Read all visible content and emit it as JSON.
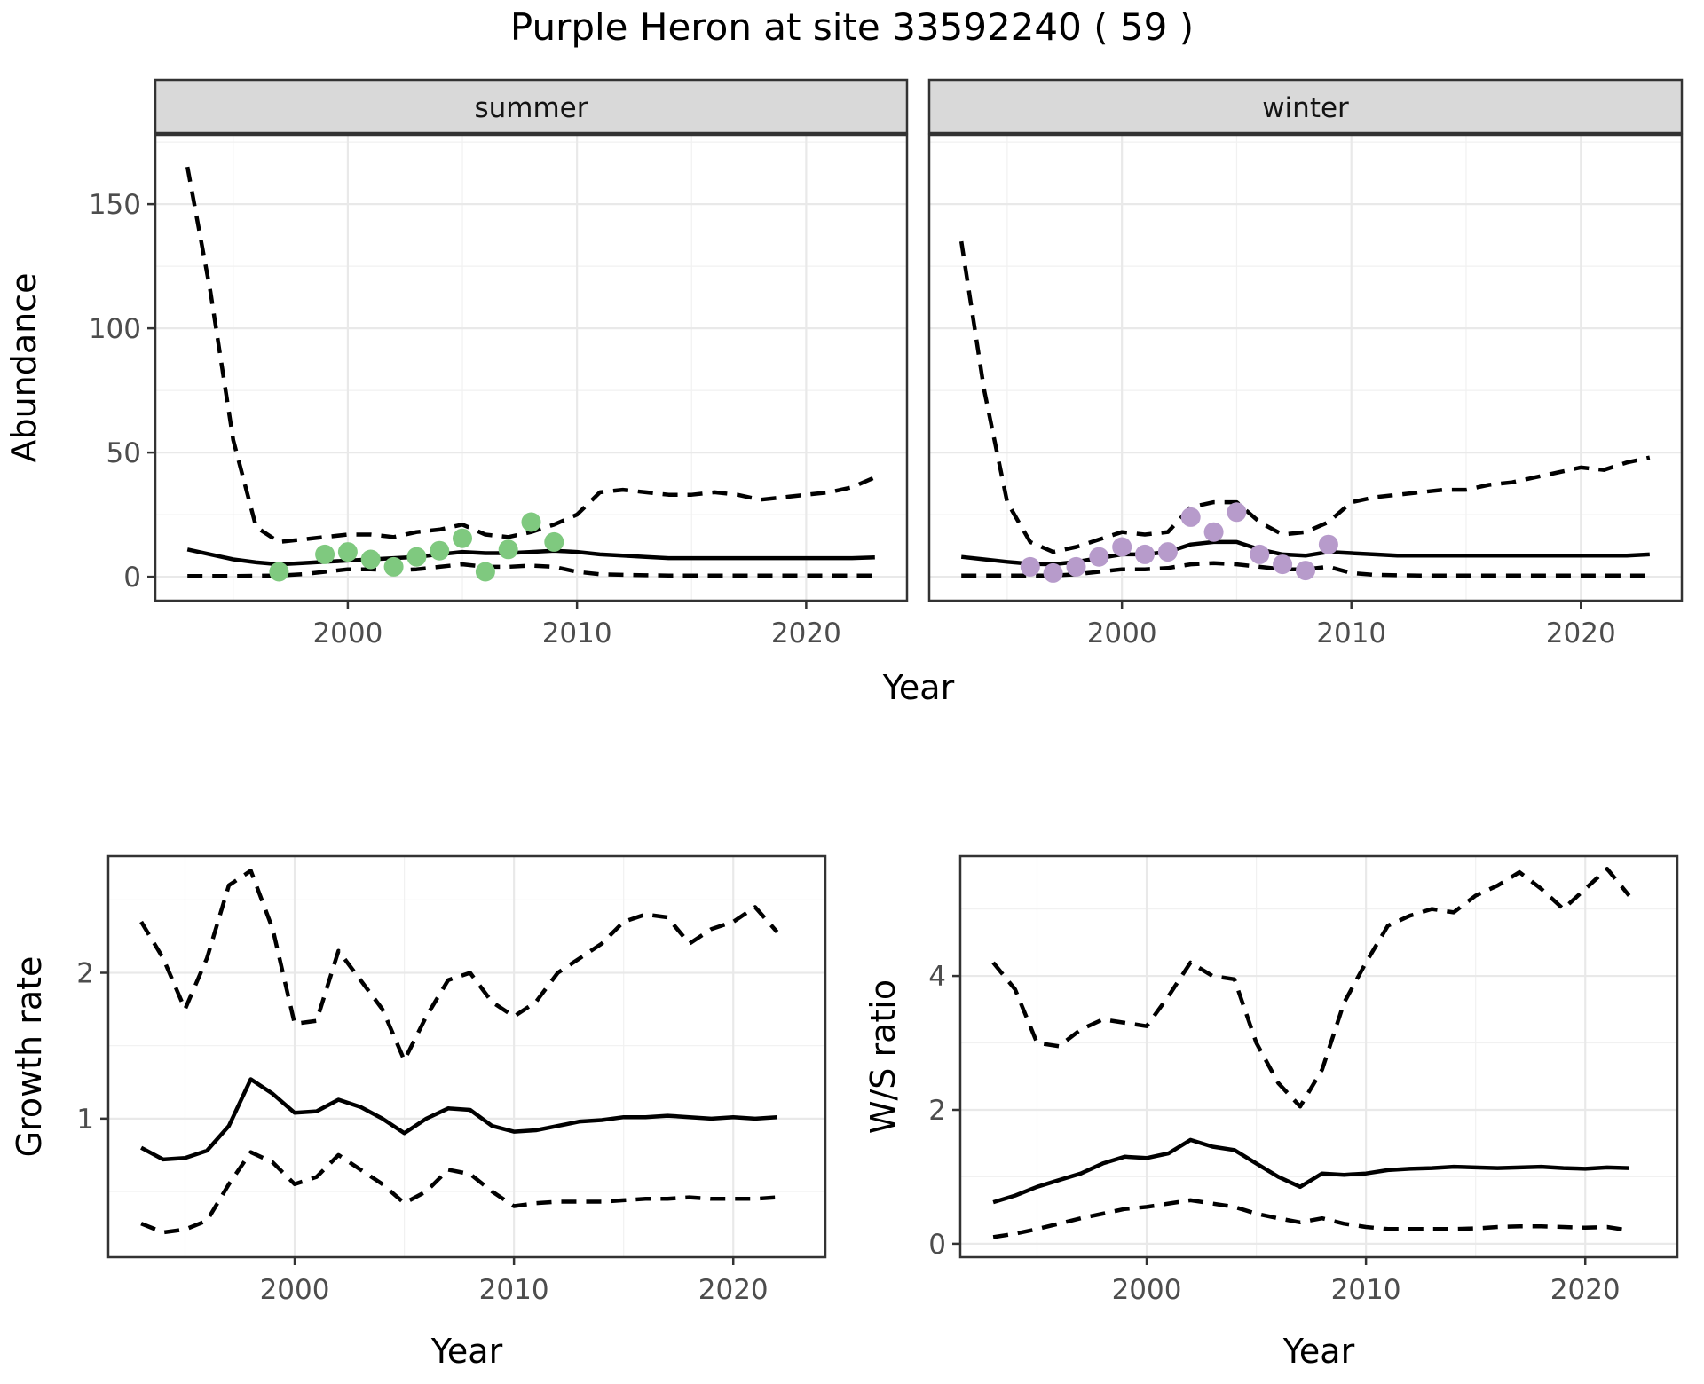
{
  "title": "Purple Heron at site 33592240 ( 59 )",
  "colors": {
    "fit_line": "#000000",
    "summer_points": "#7fc97f",
    "winter_points": "#b79bcb",
    "grid_major": "#e9e9e9",
    "grid_minor": "#f1f1f1",
    "panel_border": "#333333",
    "strip_bg": "#d9d9d9",
    "tick_label": "#4d4d4d",
    "axis_title": "#000000"
  },
  "chart_data": [
    {
      "type": "line",
      "id": "abundance",
      "ylabel": "Abundance",
      "xlabel": "Year",
      "x_ticks": [
        2000,
        2010,
        2020
      ],
      "y_ticks": [
        0,
        50,
        100,
        150
      ],
      "xlim": [
        1991.6,
        2024.4
      ],
      "ylim": [
        -9.6,
        177.9
      ],
      "years": [
        1993,
        1994,
        1995,
        1996,
        1997,
        1998,
        1999,
        2000,
        2001,
        2002,
        2003,
        2004,
        2005,
        2006,
        2007,
        2008,
        2009,
        2010,
        2011,
        2012,
        2013,
        2014,
        2015,
        2016,
        2017,
        2018,
        2019,
        2020,
        2021,
        2022,
        2023
      ],
      "facets": [
        {
          "label": "summer",
          "series": [
            {
              "name": "ci_upper",
              "style": "dashed",
              "values": [
                165,
                115,
                55,
                20,
                14,
                15,
                16,
                17,
                17,
                16,
                18,
                19,
                21,
                17,
                16,
                18,
                21,
                25,
                34,
                35,
                34,
                33,
                33,
                34,
                33,
                31,
                32,
                33,
                34,
                36,
                40
              ]
            },
            {
              "name": "ci_lower",
              "style": "dashed",
              "values": [
                0.3,
                0.3,
                0.3,
                0.4,
                0.5,
                1,
                2,
                3,
                3,
                2.5,
                3,
                4,
                5,
                4,
                4,
                4.5,
                4,
                2,
                1,
                0.8,
                0.6,
                0.5,
                0.5,
                0.5,
                0.5,
                0.5,
                0.5,
                0.5,
                0.5,
                0.5,
                0.5
              ]
            },
            {
              "name": "median",
              "style": "solid",
              "values": [
                11,
                9,
                7,
                5.8,
                5,
                5.5,
                6,
                6.5,
                7,
                7.5,
                8,
                9,
                10,
                9.5,
                9.5,
                10,
                10.5,
                10,
                9,
                8.5,
                8,
                7.5,
                7.5,
                7.5,
                7.5,
                7.5,
                7.5,
                7.5,
                7.5,
                7.5,
                7.8
              ]
            }
          ],
          "observations": {
            "years": [
              1997,
              1999,
              2000,
              2001,
              2002,
              2003,
              2004,
              2005,
              2006,
              2007,
              2008,
              2009
            ],
            "values": [
              2,
              9,
              10,
              7,
              4,
              8,
              10.5,
              15.5,
              2,
              11,
              22,
              14
            ],
            "color_key": "summer_points"
          }
        },
        {
          "label": "winter",
          "series": [
            {
              "name": "ci_upper",
              "style": "dashed",
              "values": [
                135,
                75,
                30,
                14,
                10,
                12,
                15,
                18,
                17,
                18,
                28,
                30,
                30,
                22,
                17,
                18,
                22,
                30,
                32,
                33,
                34,
                35,
                35,
                37,
                38,
                40,
                42,
                44,
                43,
                46,
                48
              ]
            },
            {
              "name": "ci_lower",
              "style": "dashed",
              "values": [
                0.5,
                0.5,
                0.5,
                0.5,
                0.5,
                1,
                2,
                3,
                3,
                3.5,
                5,
                5.5,
                5,
                4,
                3,
                3,
                4,
                1.5,
                0.8,
                0.6,
                0.5,
                0.5,
                0.5,
                0.5,
                0.5,
                0.5,
                0.5,
                0.5,
                0.5,
                0.5,
                0.5
              ]
            },
            {
              "name": "median",
              "style": "solid",
              "values": [
                8,
                7,
                6,
                5.2,
                5,
                6,
                7.5,
                9,
                9,
                10,
                13,
                14,
                14,
                11,
                9,
                8.5,
                10,
                9.5,
                9,
                8.5,
                8.5,
                8.5,
                8.5,
                8.5,
                8.5,
                8.5,
                8.5,
                8.5,
                8.5,
                8.5,
                9
              ]
            }
          ],
          "observations": {
            "years": [
              1996,
              1997,
              1998,
              1999,
              2000,
              2001,
              2002,
              2003,
              2004,
              2005,
              2006,
              2007,
              2008,
              2009
            ],
            "values": [
              4,
              1.5,
              4,
              8,
              12,
              9,
              10,
              24,
              18,
              26,
              9,
              5,
              2.5,
              13
            ],
            "color_key": "winter_points"
          }
        }
      ]
    },
    {
      "type": "line",
      "id": "growth_rate",
      "ylabel": "Growth rate",
      "xlabel": "Year",
      "x_ticks": [
        2000,
        2010,
        2020
      ],
      "y_ticks": [
        1,
        2
      ],
      "xlim": [
        1991.5,
        2024.2
      ],
      "ylim": [
        0.05,
        2.8
      ],
      "years": [
        1993,
        1994,
        1995,
        1996,
        1997,
        1998,
        1999,
        2000,
        2001,
        2002,
        2003,
        2004,
        2005,
        2006,
        2007,
        2008,
        2009,
        2010,
        2011,
        2012,
        2013,
        2014,
        2015,
        2016,
        2017,
        2018,
        2019,
        2020,
        2021,
        2022
      ],
      "series": [
        {
          "name": "ci_upper",
          "style": "dashed",
          "values": [
            2.35,
            2.1,
            1.75,
            2.1,
            2.6,
            2.7,
            2.3,
            1.65,
            1.67,
            2.15,
            1.95,
            1.75,
            1.4,
            1.7,
            1.95,
            2.0,
            1.8,
            1.7,
            1.8,
            2.0,
            2.1,
            2.2,
            2.35,
            2.4,
            2.38,
            2.2,
            2.3,
            2.35,
            2.45,
            2.28
          ]
        },
        {
          "name": "ci_lower",
          "style": "dashed",
          "values": [
            0.28,
            0.22,
            0.24,
            0.3,
            0.55,
            0.77,
            0.7,
            0.55,
            0.6,
            0.75,
            0.65,
            0.55,
            0.42,
            0.5,
            0.65,
            0.62,
            0.5,
            0.4,
            0.42,
            0.43,
            0.43,
            0.43,
            0.44,
            0.45,
            0.45,
            0.46,
            0.45,
            0.45,
            0.45,
            0.46
          ]
        },
        {
          "name": "median",
          "style": "solid",
          "values": [
            0.8,
            0.72,
            0.73,
            0.78,
            0.95,
            1.27,
            1.17,
            1.04,
            1.05,
            1.13,
            1.08,
            1.0,
            0.9,
            1.0,
            1.07,
            1.06,
            0.95,
            0.91,
            0.92,
            0.95,
            0.98,
            0.99,
            1.01,
            1.01,
            1.02,
            1.01,
            1.0,
            1.01,
            1.0,
            1.01
          ]
        }
      ]
    },
    {
      "type": "line",
      "id": "ws_ratio",
      "ylabel": "W/S ratio",
      "xlabel": "Year",
      "x_ticks": [
        2000,
        2010,
        2020
      ],
      "y_ticks": [
        0,
        2,
        4
      ],
      "xlim": [
        1991.5,
        2024.2
      ],
      "ylim": [
        -0.2,
        5.79
      ],
      "years": [
        1993,
        1994,
        1995,
        1996,
        1997,
        1998,
        1999,
        2000,
        2001,
        2002,
        2003,
        2004,
        2005,
        2006,
        2007,
        2008,
        2009,
        2010,
        2011,
        2012,
        2013,
        2014,
        2015,
        2016,
        2017,
        2018,
        2019,
        2020,
        2021,
        2022
      ],
      "series": [
        {
          "name": "ci_upper",
          "style": "dashed",
          "values": [
            4.2,
            3.8,
            3.0,
            2.95,
            3.2,
            3.35,
            3.3,
            3.25,
            3.7,
            4.2,
            4.0,
            3.95,
            3.0,
            2.4,
            2.05,
            2.6,
            3.6,
            4.2,
            4.75,
            4.9,
            5.0,
            4.95,
            5.2,
            5.35,
            5.55,
            5.3,
            5.0,
            5.3,
            5.6,
            5.2
          ]
        },
        {
          "name": "ci_lower",
          "style": "dashed",
          "values": [
            0.1,
            0.15,
            0.22,
            0.3,
            0.38,
            0.45,
            0.52,
            0.55,
            0.6,
            0.65,
            0.6,
            0.55,
            0.45,
            0.38,
            0.32,
            0.38,
            0.3,
            0.25,
            0.22,
            0.22,
            0.22,
            0.22,
            0.23,
            0.25,
            0.26,
            0.26,
            0.25,
            0.24,
            0.25,
            0.2
          ]
        },
        {
          "name": "median",
          "style": "solid",
          "values": [
            0.62,
            0.72,
            0.85,
            0.95,
            1.05,
            1.2,
            1.3,
            1.28,
            1.35,
            1.55,
            1.45,
            1.4,
            1.2,
            1.0,
            0.85,
            1.05,
            1.03,
            1.05,
            1.1,
            1.12,
            1.13,
            1.15,
            1.14,
            1.13,
            1.14,
            1.15,
            1.13,
            1.12,
            1.14,
            1.13
          ]
        }
      ]
    }
  ]
}
